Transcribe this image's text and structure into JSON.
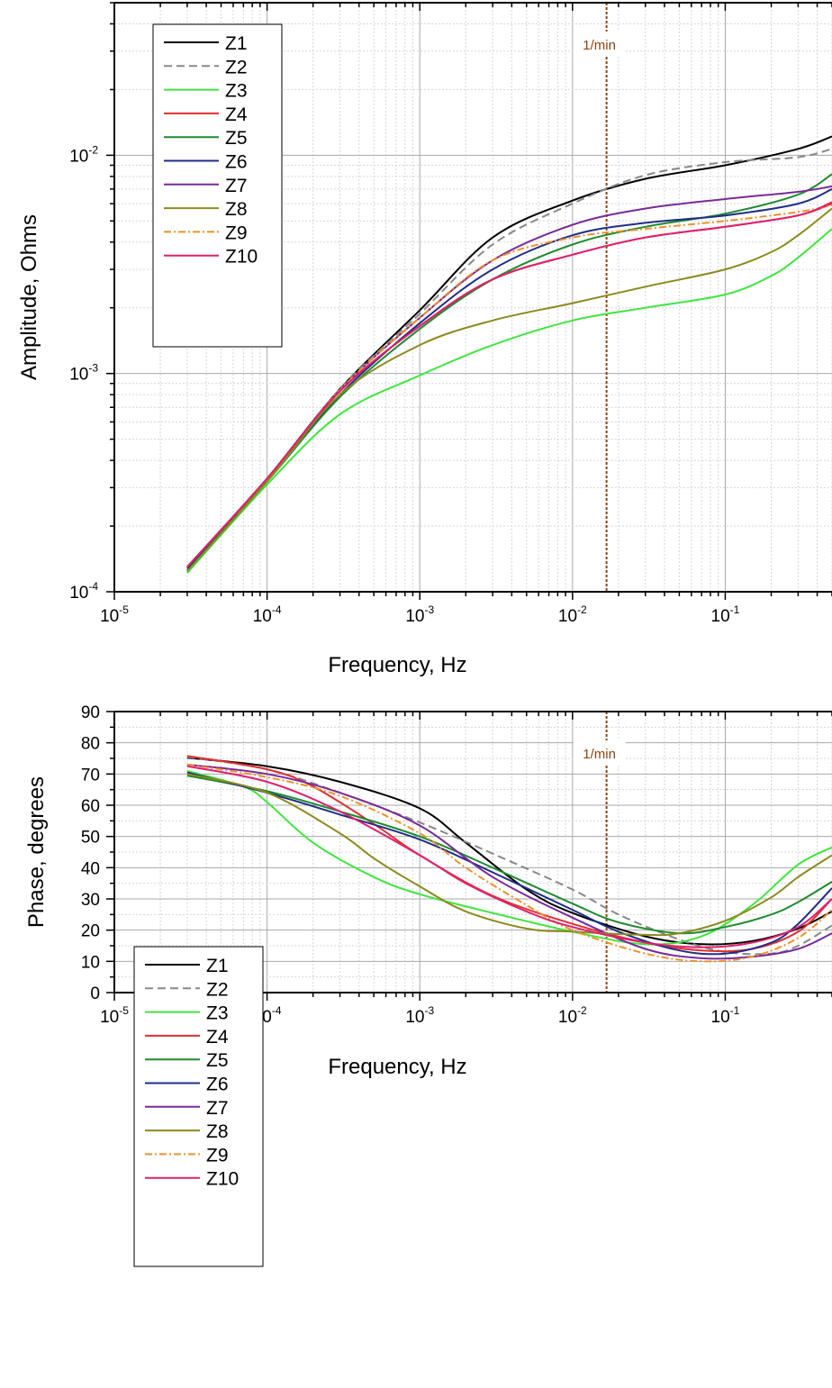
{
  "chart_data": [
    {
      "type": "line",
      "xlabel": "Frequency, Hz",
      "ylabel": "Amplitude, Ohms",
      "xscale": "log",
      "yscale": "log",
      "xlim": [
        1e-05,
        0.5
      ],
      "ylim": [
        0.0001,
        0.05
      ],
      "xticks": [
        {
          "base": "10",
          "exp": "-5"
        },
        {
          "base": "10",
          "exp": "-4"
        },
        {
          "base": "10",
          "exp": "-3"
        },
        {
          "base": "10",
          "exp": "-2"
        },
        {
          "base": "10",
          "exp": "-1"
        }
      ],
      "yticks": [
        {
          "base": "10",
          "exp": "-4"
        },
        {
          "base": "10",
          "exp": "-3"
        },
        {
          "base": "10",
          "exp": "-2"
        }
      ],
      "grid": true,
      "legend_position": "top-left",
      "annotation": {
        "label": "1/min",
        "x": 0.0167
      },
      "series": [
        {
          "name": "Z1",
          "color": "#000000",
          "dash": "solid",
          "x": [
            3e-05,
            0.0001,
            0.0003,
            0.001,
            0.003,
            0.01,
            0.03,
            0.1,
            0.3,
            0.5
          ],
          "y": [
            0.000125,
            0.00033,
            0.00085,
            0.00195,
            0.0042,
            0.0062,
            0.0078,
            0.009,
            0.0107,
            0.0122
          ]
        },
        {
          "name": "Z2",
          "color": "#888888",
          "dash": "dashed",
          "x": [
            3e-05,
            0.0001,
            0.0003,
            0.001,
            0.003,
            0.01,
            0.03,
            0.1,
            0.3,
            0.5
          ],
          "y": [
            0.000125,
            0.00033,
            0.00085,
            0.00188,
            0.0039,
            0.006,
            0.0081,
            0.0093,
            0.0098,
            0.0107
          ]
        },
        {
          "name": "Z3",
          "color": "#3EE63E",
          "dash": "solid",
          "x": [
            3e-05,
            0.0001,
            0.0003,
            0.001,
            0.003,
            0.01,
            0.03,
            0.1,
            0.2,
            0.3,
            0.5
          ],
          "y": [
            0.000122,
            0.00031,
            0.00065,
            0.00098,
            0.00135,
            0.00175,
            0.002,
            0.0023,
            0.0028,
            0.0034,
            0.0046
          ]
        },
        {
          "name": "Z4",
          "color": "#E03030",
          "dash": "solid",
          "x": [
            3e-05,
            0.0001,
            0.0003,
            0.001,
            0.003,
            0.01,
            0.03,
            0.1,
            0.3,
            0.5
          ],
          "y": [
            0.00013,
            0.00033,
            0.00083,
            0.00165,
            0.0027,
            0.0035,
            0.0042,
            0.0047,
            0.0053,
            0.006
          ]
        },
        {
          "name": "Z5",
          "color": "#1E8C2E",
          "dash": "solid",
          "x": [
            3e-05,
            0.0001,
            0.0003,
            0.001,
            0.003,
            0.01,
            0.03,
            0.1,
            0.3,
            0.5
          ],
          "y": [
            0.000125,
            0.00032,
            0.00078,
            0.0016,
            0.0027,
            0.0039,
            0.0047,
            0.0054,
            0.0066,
            0.0082
          ]
        },
        {
          "name": "Z6",
          "color": "#1F2D8A",
          "dash": "solid",
          "x": [
            3e-05,
            0.0001,
            0.0003,
            0.001,
            0.003,
            0.01,
            0.03,
            0.1,
            0.3,
            0.5
          ],
          "y": [
            0.000128,
            0.00033,
            0.0008,
            0.0017,
            0.003,
            0.0043,
            0.0049,
            0.0053,
            0.006,
            0.007
          ]
        },
        {
          "name": "Z7",
          "color": "#7B2A9A",
          "dash": "solid",
          "x": [
            3e-05,
            0.0001,
            0.0003,
            0.001,
            0.003,
            0.01,
            0.03,
            0.1,
            0.3,
            0.5
          ],
          "y": [
            0.00013,
            0.00033,
            0.00084,
            0.0018,
            0.0033,
            0.0048,
            0.0057,
            0.0063,
            0.0068,
            0.0072
          ]
        },
        {
          "name": "Z8",
          "color": "#8C8A1E",
          "dash": "solid",
          "x": [
            3e-05,
            0.0001,
            0.0003,
            0.001,
            0.003,
            0.01,
            0.03,
            0.1,
            0.2,
            0.3,
            0.5
          ],
          "y": [
            0.000124,
            0.00032,
            0.0008,
            0.00135,
            0.00175,
            0.0021,
            0.0025,
            0.003,
            0.0036,
            0.0043,
            0.0057
          ]
        },
        {
          "name": "Z9",
          "color": "#F0902A",
          "dash": "dashdot",
          "x": [
            3e-05,
            0.0001,
            0.0003,
            0.001,
            0.003,
            0.01,
            0.03,
            0.1,
            0.3,
            0.5
          ],
          "y": [
            0.00013,
            0.00033,
            0.00084,
            0.0018,
            0.0033,
            0.0042,
            0.0046,
            0.005,
            0.0055,
            0.0059
          ]
        },
        {
          "name": "Z10",
          "color": "#E0206E",
          "dash": "solid",
          "x": [
            3e-05,
            0.0001,
            0.0003,
            0.001,
            0.003,
            0.01,
            0.03,
            0.1,
            0.3,
            0.5
          ],
          "y": [
            0.00013,
            0.00033,
            0.00083,
            0.00165,
            0.0027,
            0.0035,
            0.0042,
            0.0047,
            0.0053,
            0.0061
          ]
        }
      ]
    },
    {
      "type": "line",
      "xlabel": "Frequency, Hz",
      "ylabel": "Phase, degrees",
      "xscale": "log",
      "yscale": "linear",
      "xlim": [
        1e-05,
        0.5
      ],
      "ylim": [
        0,
        90
      ],
      "xticks": [
        {
          "base": "10",
          "exp": "-5"
        },
        {
          "base": "10",
          "exp": "-4"
        },
        {
          "base": "10",
          "exp": "-3"
        },
        {
          "base": "10",
          "exp": "-2"
        },
        {
          "base": "10",
          "exp": "-1"
        }
      ],
      "yticks": [
        "0",
        "10",
        "20",
        "30",
        "40",
        "50",
        "60",
        "70",
        "80",
        "90"
      ],
      "grid": true,
      "legend_position": "bottom-left",
      "annotation": {
        "label": "1/min",
        "x": 0.0167
      },
      "series": [
        {
          "name": "Z1",
          "color": "#000000",
          "dash": "solid",
          "x": [
            3e-05,
            0.0001,
            0.0003,
            0.001,
            0.002,
            0.005,
            0.01,
            0.03,
            0.07,
            0.15,
            0.3,
            0.5
          ],
          "y": [
            75.2,
            72.5,
            67.5,
            59,
            48,
            33,
            25.5,
            18,
            15.5,
            16.5,
            20.5,
            26
          ]
        },
        {
          "name": "Z2",
          "color": "#888888",
          "dash": "dashed",
          "x": [
            3e-05,
            0.0001,
            0.0003,
            0.001,
            0.003,
            0.01,
            0.02,
            0.05,
            0.1,
            0.2,
            0.3,
            0.5
          ],
          "y": [
            75.5,
            71.5,
            64,
            54.5,
            44.5,
            33,
            25,
            17,
            13,
            12.5,
            15,
            21.5
          ]
        },
        {
          "name": "Z3",
          "color": "#3EE63E",
          "dash": "solid",
          "x": [
            3e-05,
            7e-05,
            0.0001,
            0.0002,
            0.0005,
            0.001,
            0.003,
            0.01,
            0.03,
            0.07,
            0.15,
            0.3,
            0.5
          ],
          "y": [
            71,
            66,
            61,
            48,
            37,
            31.5,
            25.5,
            19.5,
            15.5,
            18,
            28,
            41,
            46.5
          ]
        },
        {
          "name": "Z4",
          "color": "#E03030",
          "dash": "solid",
          "x": [
            3e-05,
            0.0001,
            0.0002,
            0.0005,
            0.001,
            0.003,
            0.01,
            0.03,
            0.07,
            0.15,
            0.3,
            0.5
          ],
          "y": [
            75.8,
            71.5,
            66,
            54,
            44,
            31,
            22,
            16,
            13.5,
            14,
            19.5,
            30
          ]
        },
        {
          "name": "Z5",
          "color": "#1E8C2E",
          "dash": "solid",
          "x": [
            3e-05,
            0.0001,
            0.0003,
            0.001,
            0.003,
            0.01,
            0.02,
            0.05,
            0.1,
            0.2,
            0.3,
            0.5
          ],
          "y": [
            69.5,
            64.5,
            58,
            50,
            40,
            28.5,
            22.5,
            19,
            21,
            25,
            29,
            35.5
          ]
        },
        {
          "name": "Z6",
          "color": "#1F2D8A",
          "dash": "solid",
          "x": [
            3e-05,
            0.0001,
            0.0003,
            0.001,
            0.003,
            0.01,
            0.02,
            0.05,
            0.1,
            0.2,
            0.3,
            0.5
          ],
          "y": [
            70.5,
            64,
            57,
            49,
            38.5,
            26.5,
            19.5,
            13.5,
            12.5,
            16,
            22,
            33.5
          ]
        },
        {
          "name": "Z7",
          "color": "#7B2A9A",
          "dash": "solid",
          "x": [
            3e-05,
            0.0001,
            0.0003,
            0.001,
            0.003,
            0.01,
            0.03,
            0.07,
            0.15,
            0.3,
            0.5
          ],
          "y": [
            73,
            70,
            64,
            53.5,
            37,
            24,
            14,
            11,
            11.5,
            14,
            19
          ]
        },
        {
          "name": "Z8",
          "color": "#8C8A1E",
          "dash": "solid",
          "x": [
            3e-05,
            0.0001,
            0.0003,
            0.0005,
            0.001,
            0.002,
            0.005,
            0.01,
            0.03,
            0.05,
            0.1,
            0.2,
            0.3,
            0.5
          ],
          "y": [
            70,
            64,
            51,
            43,
            34,
            26,
            20.5,
            19.5,
            18.5,
            19,
            23,
            30.5,
            37,
            44
          ]
        },
        {
          "name": "Z9",
          "color": "#F0902A",
          "dash": "dashdot",
          "x": [
            3e-05,
            0.0001,
            0.0003,
            0.001,
            0.002,
            0.005,
            0.01,
            0.03,
            0.07,
            0.15,
            0.3,
            0.5
          ],
          "y": [
            73,
            69,
            63,
            51,
            40,
            28,
            20,
            12.5,
            10,
            11.5,
            17.5,
            26.5
          ]
        },
        {
          "name": "Z10",
          "color": "#E0206E",
          "dash": "solid",
          "x": [
            3e-05,
            0.0001,
            0.0003,
            0.001,
            0.002,
            0.005,
            0.01,
            0.03,
            0.07,
            0.15,
            0.3,
            0.5
          ],
          "y": [
            72.5,
            67.5,
            58,
            44,
            35,
            26,
            21,
            16,
            14.5,
            16,
            21,
            30
          ]
        }
      ]
    }
  ]
}
